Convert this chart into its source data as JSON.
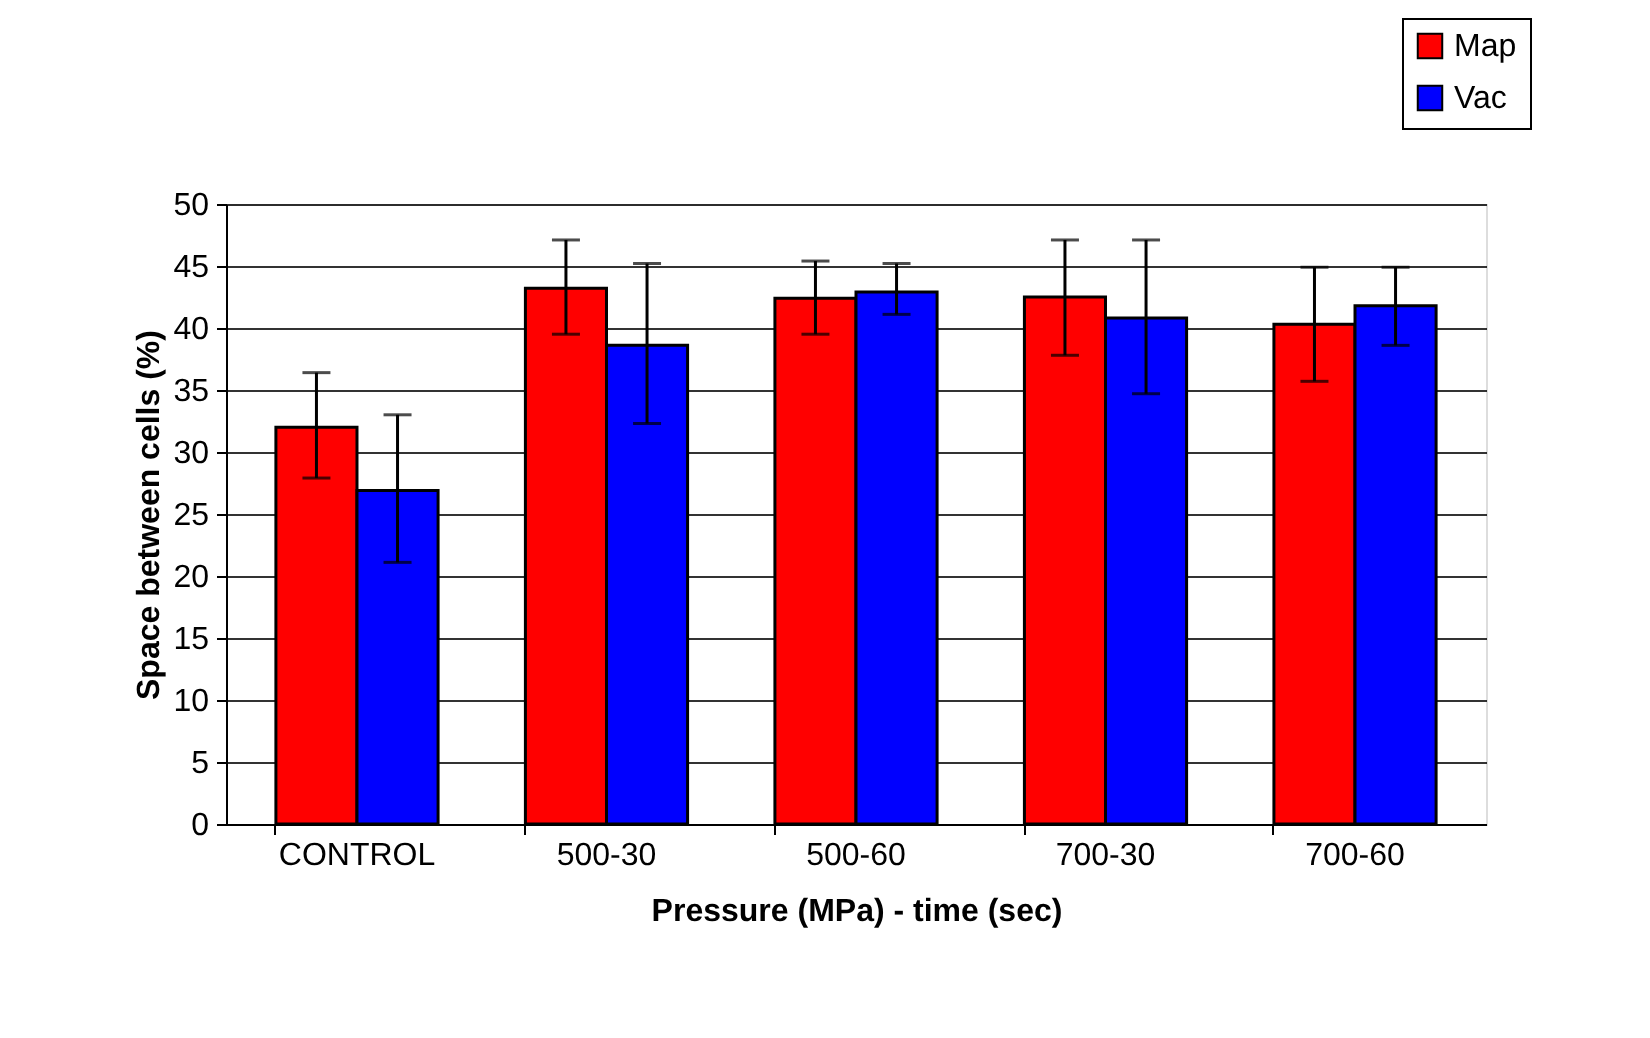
{
  "chart_data": {
    "type": "bar",
    "xlabel": "Pressure (MPa) - time (sec)",
    "ylabel": "Space between cells (%)",
    "categories": [
      "CONTROL",
      "500-30",
      "500-60",
      "700-30",
      "700-60"
    ],
    "series": [
      {
        "name": "Map",
        "color": "#ff0000",
        "values": [
          32.0,
          43.2,
          42.4,
          42.5,
          40.3
        ],
        "errors": [
          [
            27.9,
            36.4
          ],
          [
            39.5,
            47.1
          ],
          [
            39.5,
            45.4
          ],
          [
            37.8,
            47.1
          ],
          [
            35.7,
            44.9
          ]
        ]
      },
      {
        "name": "Vac",
        "color": "#0000ff",
        "values": [
          26.9,
          38.6,
          42.9,
          40.8,
          41.8
        ],
        "errors": [
          [
            21.1,
            33.0
          ],
          [
            32.3,
            45.2
          ],
          [
            41.1,
            45.2
          ],
          [
            34.7,
            47.1
          ],
          [
            38.6,
            44.9
          ]
        ]
      }
    ],
    "ylim": [
      0,
      50
    ],
    "yticks": [
      0,
      5,
      10,
      15,
      20,
      25,
      30,
      35,
      40,
      45,
      50
    ],
    "grid": "y",
    "legend": "top right"
  }
}
